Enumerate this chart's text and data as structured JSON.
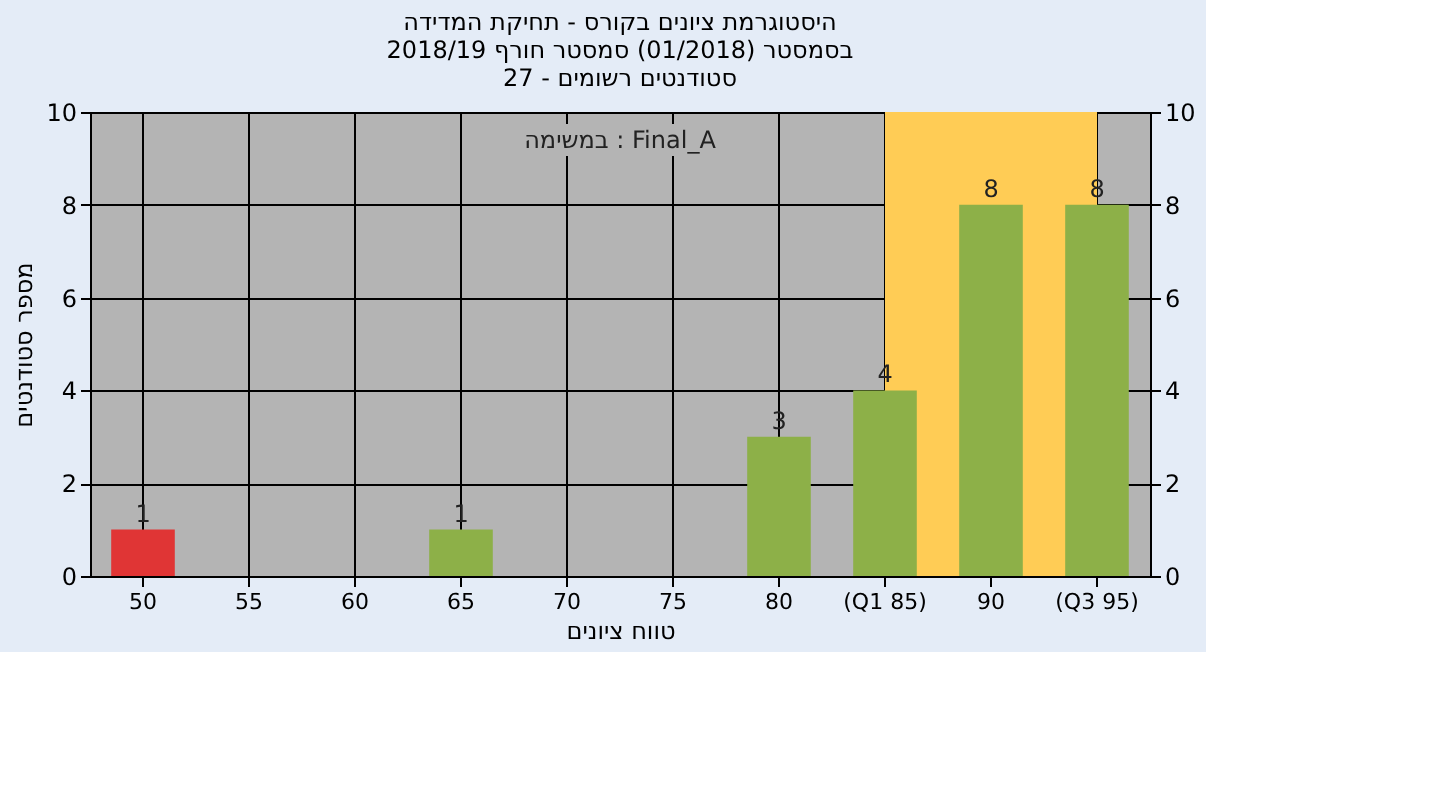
{
  "chart_data": {
    "type": "bar",
    "title": "היסטוגרמת ציונים בקורס - תחיקת המדידה\nבסמסטר (01/2018) סמסטר חורף 2018/19\nסטודנטים רשומים - 27",
    "xlabel": "טווח ציונים",
    "ylabel": "מספר סטודנטים",
    "annotations": [
      "במשימה : Final_A"
    ],
    "categories": [
      "50",
      "55",
      "60",
      "65",
      "70",
      "75",
      "80",
      "(Q1 85)",
      "90",
      "(Q3 95)"
    ],
    "values": [
      1,
      0,
      0,
      1,
      0,
      0,
      3,
      4,
      8,
      8
    ],
    "colors": [
      "#e03535",
      "#8db048",
      "#8db048",
      "#8db048",
      "#8db048",
      "#8db048",
      "#8db048",
      "#8db048",
      "#8db048",
      "#8db048"
    ],
    "value_labels": [
      "1",
      null,
      null,
      "1",
      null,
      null,
      "3",
      "4",
      "8",
      "8"
    ],
    "ylim": [
      0,
      10
    ],
    "yticks": [
      0,
      2,
      4,
      6,
      8,
      10
    ],
    "y2lim": [
      0,
      10
    ],
    "y2ticks": [
      0,
      2,
      4,
      6,
      8,
      10
    ],
    "bands": [
      {
        "axis": "x",
        "from": "(Q1 85)",
        "to": "(Q3 95)",
        "color": "#ffcc55"
      }
    ],
    "grid": true
  }
}
